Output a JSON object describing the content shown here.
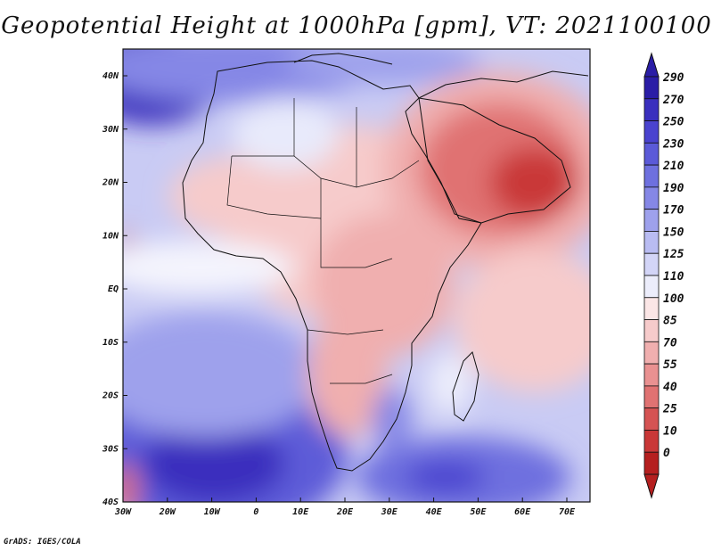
{
  "title": "Geopotential Height at 1000hPa [gpm], VT: 2021100100",
  "credit": "GrADS: IGES/COLA",
  "map": {
    "lat_labels": [
      "40N",
      "30N",
      "20N",
      "10N",
      "EQ",
      "10S",
      "20S",
      "30S",
      "40S"
    ],
    "lon_labels": [
      "30W",
      "20W",
      "10W",
      "0",
      "10E",
      "20E",
      "30E",
      "40E",
      "50E",
      "60E",
      "70E"
    ]
  },
  "colorbar": {
    "levels": [
      "290",
      "270",
      "250",
      "230",
      "210",
      "190",
      "170",
      "150",
      "125",
      "110",
      "100",
      "85",
      "70",
      "55",
      "40",
      "25",
      "10",
      "0"
    ],
    "colors": [
      "#2a1da6",
      "#3a2fbe",
      "#4a43cf",
      "#5b5ad8",
      "#6e70df",
      "#8587e6",
      "#9ea1ec",
      "#b9bcf2",
      "#d3d5f7",
      "#ecedfb",
      "#fbe6e6",
      "#f6cbcb",
      "#f0afaf",
      "#e99191",
      "#e07272",
      "#d55353",
      "#c93737",
      "#b51f1f"
    ]
  }
}
